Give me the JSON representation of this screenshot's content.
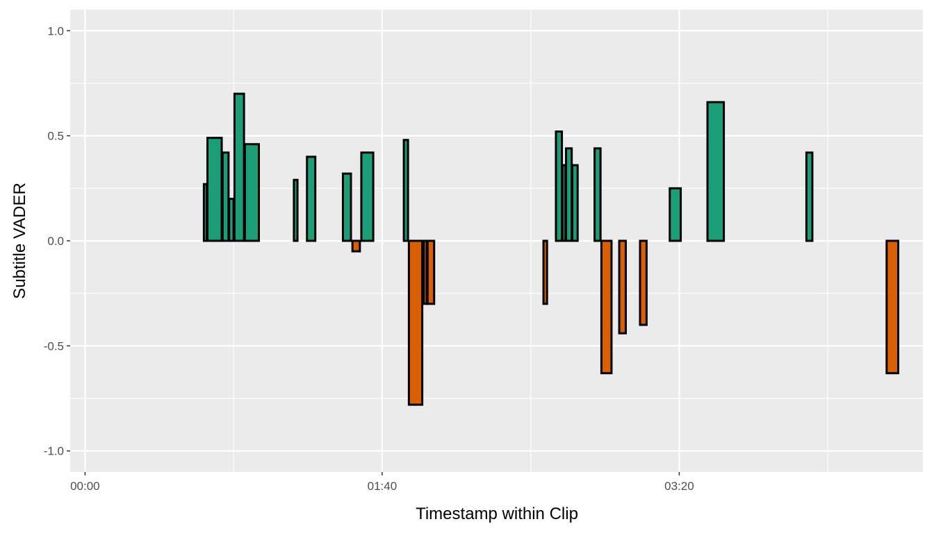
{
  "chart_data": {
    "type": "bar",
    "xlabel": "Timestamp within Clip",
    "ylabel": "Subtitle VADER",
    "x_unit": "seconds",
    "xlim": [
      -5,
      282
    ],
    "ylim": [
      -1.1,
      1.1
    ],
    "x_ticks": [
      {
        "value": 0,
        "label": "00:00"
      },
      {
        "value": 100,
        "label": "01:40"
      },
      {
        "value": 200,
        "label": "03:20"
      }
    ],
    "y_ticks": [
      {
        "value": 1.0,
        "label": "1.0"
      },
      {
        "value": 0.5,
        "label": "0.5"
      },
      {
        "value": 0.0,
        "label": "0.0"
      },
      {
        "value": -0.5,
        "label": "-0.5"
      },
      {
        "value": -1.0,
        "label": "-1.0"
      }
    ],
    "grid": true,
    "colors": {
      "positive": "#1b9e77",
      "negative": "#d95f02",
      "panel": "#ebebeb",
      "grid": "#ffffff",
      "outline": "#000000"
    },
    "bars": [
      {
        "start": 8.5,
        "end": 9.5,
        "value": 0.0
      },
      {
        "start": 12.5,
        "end": 13.5,
        "value": 0.0
      },
      {
        "start": 15.5,
        "end": 16.5,
        "value": 0.0
      },
      {
        "start": 18.0,
        "end": 19.5,
        "value": 0.0
      },
      {
        "start": 21.5,
        "end": 22.5,
        "value": 0.0
      },
      {
        "start": 26.5,
        "end": 27.5,
        "value": 0.0
      },
      {
        "start": 29.5,
        "end": 30.5,
        "value": 0.0
      },
      {
        "start": 32.0,
        "end": 33.0,
        "value": 0.0
      },
      {
        "start": 34.0,
        "end": 40.0,
        "value": 0.0
      },
      {
        "start": 40.0,
        "end": 41.0,
        "value": 0.27
      },
      {
        "start": 41.2,
        "end": 46.0,
        "value": 0.49
      },
      {
        "start": 46.3,
        "end": 48.3,
        "value": 0.42
      },
      {
        "start": 48.5,
        "end": 50.0,
        "value": 0.2
      },
      {
        "start": 50.3,
        "end": 53.5,
        "value": 0.7
      },
      {
        "start": 53.8,
        "end": 58.5,
        "value": 0.46
      },
      {
        "start": 58.8,
        "end": 62.0,
        "value": 0.0
      },
      {
        "start": 65.0,
        "end": 66.0,
        "value": 0.0
      },
      {
        "start": 67.0,
        "end": 70.0,
        "value": 0.0
      },
      {
        "start": 70.3,
        "end": 71.5,
        "value": 0.29
      },
      {
        "start": 73.0,
        "end": 74.5,
        "value": 0.0
      },
      {
        "start": 74.7,
        "end": 77.5,
        "value": 0.4
      },
      {
        "start": 77.8,
        "end": 82.5,
        "value": 0.0
      },
      {
        "start": 83.5,
        "end": 86.5,
        "value": 0.0
      },
      {
        "start": 86.8,
        "end": 89.5,
        "value": 0.32
      },
      {
        "start": 90.0,
        "end": 92.5,
        "value": -0.05
      },
      {
        "start": 93.0,
        "end": 97.0,
        "value": 0.42
      },
      {
        "start": 99.0,
        "end": 105.0,
        "value": 0.0
      },
      {
        "start": 105.5,
        "end": 107.0,
        "value": 0.0
      },
      {
        "start": 107.3,
        "end": 108.7,
        "value": 0.48
      },
      {
        "start": 109.0,
        "end": 113.5,
        "value": -0.78
      },
      {
        "start": 114.0,
        "end": 115.0,
        "value": -0.3
      },
      {
        "start": 115.3,
        "end": 117.5,
        "value": -0.3
      },
      {
        "start": 120.0,
        "end": 121.0,
        "value": 0.0
      },
      {
        "start": 125.0,
        "end": 126.0,
        "value": 0.0
      },
      {
        "start": 150.0,
        "end": 154.0,
        "value": 0.0
      },
      {
        "start": 154.3,
        "end": 155.5,
        "value": -0.3
      },
      {
        "start": 156.0,
        "end": 158.5,
        "value": 0.0
      },
      {
        "start": 158.5,
        "end": 160.5,
        "value": 0.52
      },
      {
        "start": 160.7,
        "end": 161.7,
        "value": 0.36
      },
      {
        "start": 161.9,
        "end": 163.8,
        "value": 0.44
      },
      {
        "start": 164.0,
        "end": 165.8,
        "value": 0.36
      },
      {
        "start": 166.0,
        "end": 171.0,
        "value": 0.0
      },
      {
        "start": 171.5,
        "end": 173.5,
        "value": 0.44
      },
      {
        "start": 173.8,
        "end": 177.2,
        "value": -0.63
      },
      {
        "start": 177.5,
        "end": 179.5,
        "value": 0.0
      },
      {
        "start": 179.8,
        "end": 182.0,
        "value": -0.44
      },
      {
        "start": 185.0,
        "end": 186.5,
        "value": 0.0
      },
      {
        "start": 186.8,
        "end": 189.0,
        "value": -0.4
      },
      {
        "start": 189.5,
        "end": 192.5,
        "value": 0.0
      },
      {
        "start": 193.0,
        "end": 196.5,
        "value": 0.0
      },
      {
        "start": 196.8,
        "end": 200.5,
        "value": 0.25
      },
      {
        "start": 201.0,
        "end": 203.5,
        "value": 0.0
      },
      {
        "start": 206.5,
        "end": 207.5,
        "value": 0.0
      },
      {
        "start": 209.5,
        "end": 215.0,
        "value": 0.66
      },
      {
        "start": 215.5,
        "end": 218.5,
        "value": 0.0
      },
      {
        "start": 219.0,
        "end": 220.5,
        "value": 0.0
      },
      {
        "start": 221.0,
        "end": 222.5,
        "value": 0.0
      },
      {
        "start": 233.5,
        "end": 237.5,
        "value": 0.0
      },
      {
        "start": 238.5,
        "end": 242.5,
        "value": 0.0
      },
      {
        "start": 242.8,
        "end": 244.8,
        "value": 0.42
      },
      {
        "start": 250.5,
        "end": 252.5,
        "value": 0.0
      },
      {
        "start": 253.0,
        "end": 255.0,
        "value": 0.0
      },
      {
        "start": 269.8,
        "end": 273.7,
        "value": -0.63
      }
    ]
  }
}
